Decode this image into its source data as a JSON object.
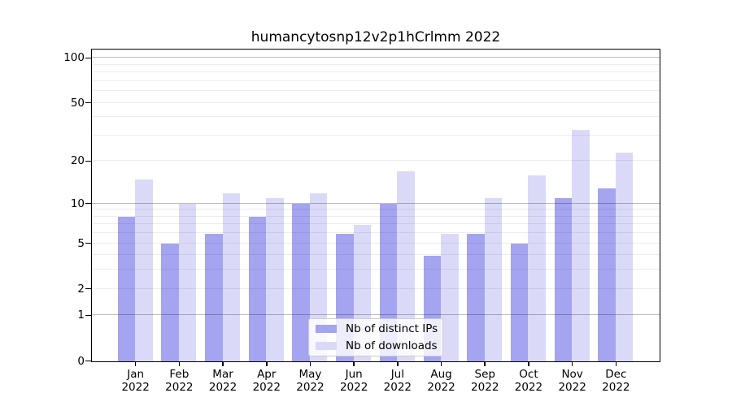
{
  "title": "humancytosnp12v2p1hCrlmm 2022",
  "colors": {
    "distinct_ips_bar": "#a4a4f0",
    "downloads_bar": "#dadaf8",
    "major_gridline": "#bdbdbd",
    "minor_gridline": "#ededed",
    "axis": "#000000"
  },
  "chart_data": {
    "type": "bar",
    "title": "humancytosnp12v2p1hCrlmm 2022",
    "categories": [
      "Jan 2022",
      "Feb 2022",
      "Mar 2022",
      "Apr 2022",
      "May 2022",
      "Jun 2022",
      "Jul 2022",
      "Aug 2022",
      "Sep 2022",
      "Oct 2022",
      "Nov 2022",
      "Dec 2022"
    ],
    "series": [
      {
        "name": "Nb of distinct IPs",
        "color": "#a4a4f0",
        "values": [
          8,
          5,
          6,
          8,
          10,
          6,
          10,
          4,
          6,
          5,
          11,
          13
        ]
      },
      {
        "name": "Nb of downloads",
        "color": "#dadaf8",
        "values": [
          15,
          10,
          12,
          11,
          12,
          7,
          17,
          6,
          11,
          16,
          33,
          23
        ]
      }
    ],
    "xlabel": "",
    "ylabel": "",
    "yscale": "log1p",
    "y_ticks": [
      100,
      50,
      20,
      10,
      5,
      2,
      1,
      0
    ],
    "y_major_gridlines": [
      1,
      10,
      100
    ],
    "y_minor_gridlines": [
      2,
      3,
      4,
      5,
      6,
      7,
      8,
      9,
      20,
      30,
      40,
      50,
      60,
      70,
      80,
      90
    ],
    "ylim": [
      0,
      113
    ],
    "grid": "horizontal",
    "legend_position": "lower center inside"
  }
}
